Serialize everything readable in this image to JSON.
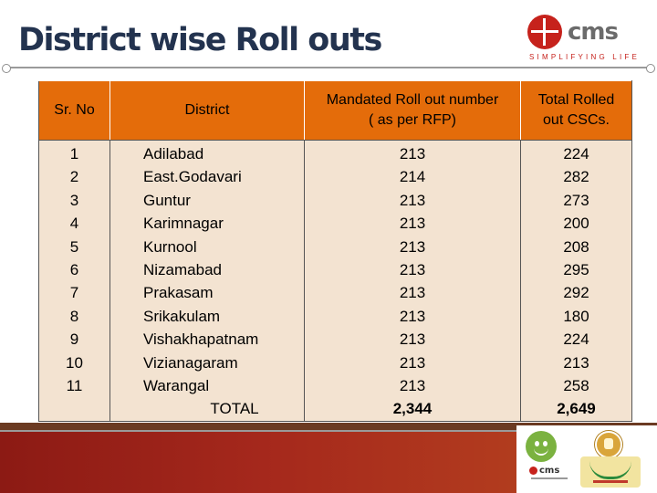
{
  "slide": {
    "title": "District wise Roll outs"
  },
  "logo": {
    "name": "cms",
    "tagline": "SIMPLIFYING LIFE",
    "accent_color": "#c6221c"
  },
  "table": {
    "headers": {
      "sr_no": "Sr. No",
      "district": "District",
      "mandated_line1": "Mandated Roll out number",
      "mandated_line2": "( as per RFP)",
      "total_line1": "Total Rolled",
      "total_line2": "out CSCs."
    },
    "header_color": "#e46c0a",
    "row_color": "#f3e3d1",
    "rows": [
      {
        "sr": "1",
        "district": "Adilabad",
        "mandated": "213",
        "rolled": "224"
      },
      {
        "sr": "2",
        "district": "East.Godavari",
        "mandated": "214",
        "rolled": "282"
      },
      {
        "sr": "3",
        "district": "Guntur",
        "mandated": "213",
        "rolled": "273"
      },
      {
        "sr": "4",
        "district": "Karimnagar",
        "mandated": "213",
        "rolled": "200"
      },
      {
        "sr": "5",
        "district": "Kurnool",
        "mandated": "213",
        "rolled": "208"
      },
      {
        "sr": "6",
        "district": "Nizamabad",
        "mandated": "213",
        "rolled": "295"
      },
      {
        "sr": "7",
        "district": "Prakasam",
        "mandated": "213",
        "rolled": "292"
      },
      {
        "sr": "8",
        "district": "Srikakulam",
        "mandated": "213",
        "rolled": "180"
      },
      {
        "sr": "9",
        "district": "Vishakhapatnam",
        "mandated": "213",
        "rolled": "224"
      },
      {
        "sr": "10",
        "district": "Vizianagaram",
        "mandated": "213",
        "rolled": "213"
      },
      {
        "sr": "11",
        "district": "Warangal",
        "mandated": "213",
        "rolled": "258"
      }
    ],
    "total": {
      "label": "TOTAL",
      "mandated": "2,344",
      "rolled": "2,649"
    }
  },
  "footer": {
    "band_color": "#a5281c",
    "icons": [
      "smiley-icon",
      "state-emblem-icon",
      "meeseva-logo-icon",
      "cms-mini-logo-icon"
    ]
  }
}
